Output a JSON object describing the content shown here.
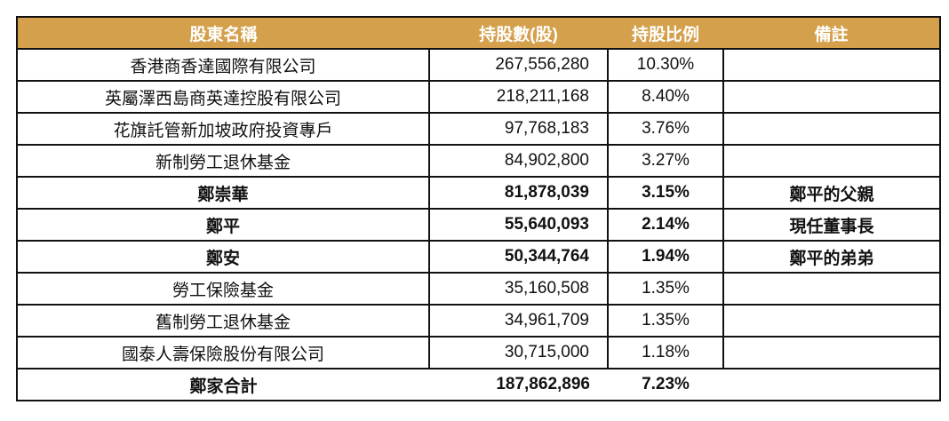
{
  "header": {
    "colors": {
      "header_bg": "#D4A04C"
    },
    "columns": [
      "股東名稱",
      "持股數(股)",
      "持股比例",
      "備註"
    ]
  },
  "rows": [
    {
      "name": "香港商香達國際有限公司",
      "shares": "267,556,280",
      "pct": "10.30%",
      "note": "",
      "bold": false
    },
    {
      "name": "英屬澤西島商英達控股有限公司",
      "shares": "218,211,168",
      "pct": "8.40%",
      "note": "",
      "bold": false
    },
    {
      "name": "花旗託管新加坡政府投資專戶",
      "shares": "97,768,183",
      "pct": "3.76%",
      "note": "",
      "bold": false
    },
    {
      "name": "新制勞工退休基金",
      "shares": "84,902,800",
      "pct": "3.27%",
      "note": "",
      "bold": false
    },
    {
      "name": "鄭崇華",
      "shares": "81,878,039",
      "pct": "3.15%",
      "note": "鄭平的父親",
      "bold": true
    },
    {
      "name": "鄭平",
      "shares": "55,640,093",
      "pct": "2.14%",
      "note": "現任董事長",
      "bold": true
    },
    {
      "name": "鄭安",
      "shares": "50,344,764",
      "pct": "1.94%",
      "note": "鄭平的弟弟",
      "bold": true
    },
    {
      "name": "勞工保險基金",
      "shares": "35,160,508",
      "pct": "1.35%",
      "note": "",
      "bold": false
    },
    {
      "name": "舊制勞工退休基金",
      "shares": "34,961,709",
      "pct": "1.35%",
      "note": "",
      "bold": false
    },
    {
      "name": "國泰人壽保險股份有限公司",
      "shares": "30,715,000",
      "pct": "1.18%",
      "note": "",
      "bold": false
    }
  ],
  "total": {
    "name": "鄭家合計",
    "shares": "187,862,896",
    "pct": "7.23%"
  }
}
